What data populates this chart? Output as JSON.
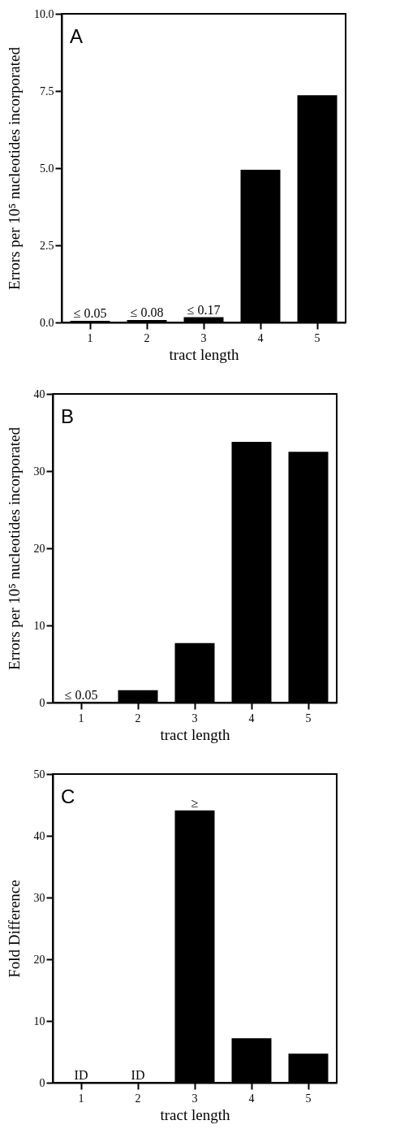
{
  "chart_data": [
    {
      "type": "bar",
      "title": "A",
      "xlabel": "tract length",
      "ylabel": "Errors per 10⁵ nucleotides incorporated",
      "categories": [
        "1",
        "2",
        "3",
        "4",
        "5"
      ],
      "values": [
        0.05,
        0.08,
        0.17,
        4.95,
        7.36
      ],
      "value_labels": [
        "≤ 0.05",
        "≤ 0.08",
        "≤ 0.17",
        null,
        null
      ],
      "color": "#000000",
      "ylim": [
        0,
        10
      ],
      "yticks": [
        {
          "value": 0,
          "label": "0.0"
        },
        {
          "value": 2.5,
          "label": "2.5"
        },
        {
          "value": 5,
          "label": "5.0"
        },
        {
          "value": 7.5,
          "label": "7.5"
        },
        {
          "value": 10,
          "label": "10.0"
        }
      ]
    },
    {
      "type": "bar",
      "title": "B",
      "xlabel": "tract length",
      "ylabel": "Errors per 10⁵ nucleotides incorporated",
      "categories": [
        "1",
        "2",
        "3",
        "4",
        "5"
      ],
      "values": [
        0.05,
        1.6,
        7.7,
        33.8,
        32.5
      ],
      "value_labels": [
        "≤ 0.05",
        null,
        null,
        null,
        null
      ],
      "color": "#000000",
      "ylim": [
        0,
        40
      ],
      "yticks": [
        0,
        10,
        20,
        30,
        40
      ]
    },
    {
      "type": "bar",
      "title": "C",
      "xlabel": "tract length",
      "ylabel": "Fold Difference",
      "categories": [
        "1",
        "2",
        "3",
        "4",
        "5"
      ],
      "values": [
        null,
        null,
        44.1,
        7.2,
        4.7
      ],
      "value_labels": [
        "ID",
        "ID",
        "≥",
        null,
        null
      ],
      "color": "#000000",
      "ylim": [
        0,
        50
      ],
      "yticks": [
        0,
        10,
        20,
        30,
        40,
        50
      ]
    }
  ]
}
